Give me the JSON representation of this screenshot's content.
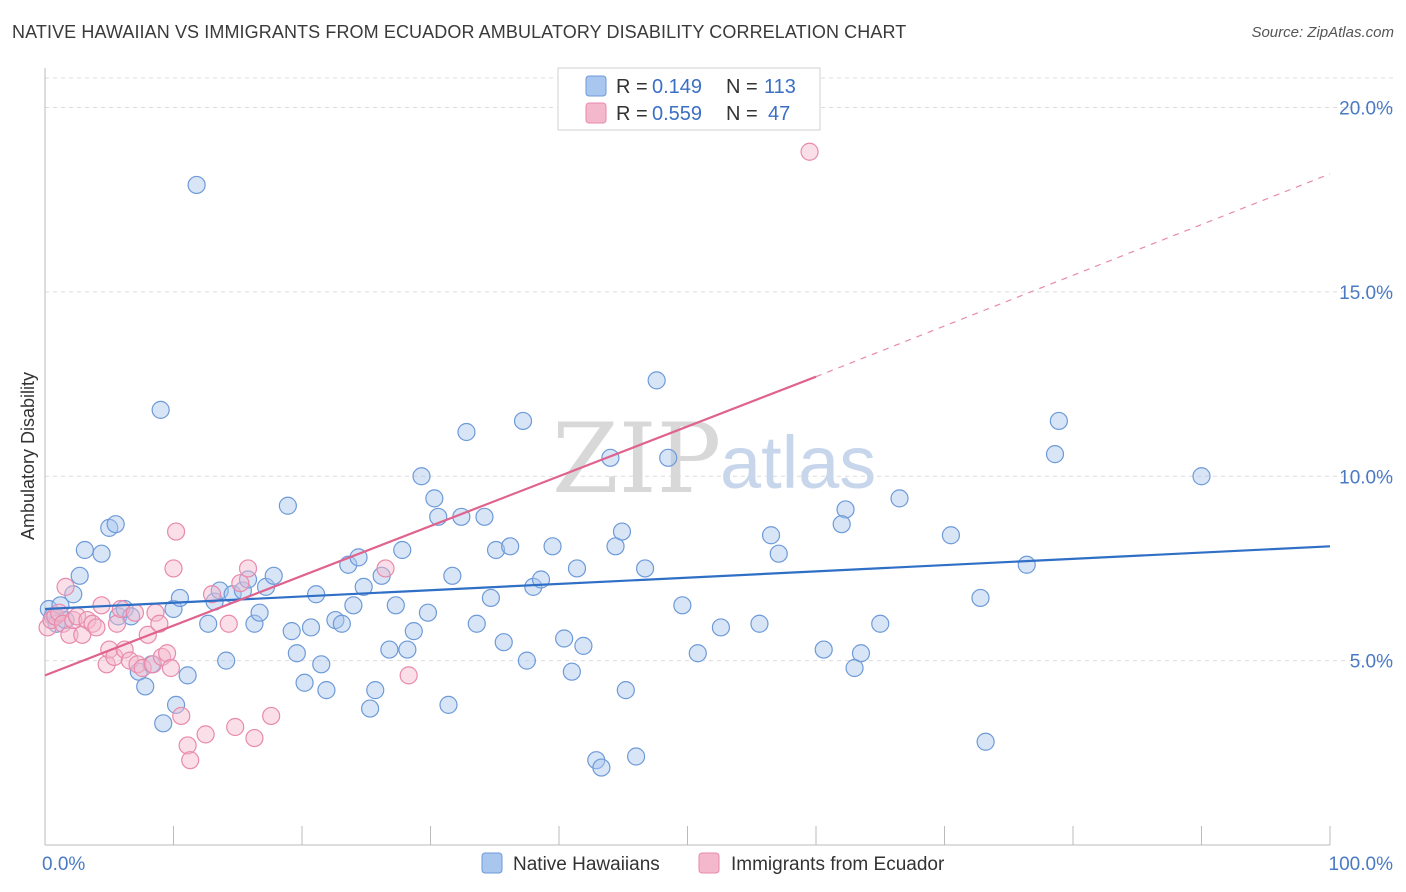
{
  "header": {
    "title": "NATIVE HAWAIIAN VS IMMIGRANTS FROM ECUADOR AMBULATORY DISABILITY CORRELATION CHART",
    "source": "Source: ZipAtlas.com"
  },
  "watermark": {
    "zip": "ZIP",
    "atlas": "atlas"
  },
  "colors": {
    "blue_fill": "#a9c6ee",
    "blue_stroke": "#6d9ad8",
    "blue_line": "#2f6fc6",
    "pink_fill": "#f4b8cc",
    "pink_stroke": "#e88aab",
    "pink_line": "#e0628e",
    "grid": "#dcdcdc",
    "axis_label": "#4a7ac4"
  },
  "legend": {
    "items": [
      {
        "r_label": "R =",
        "r_value": "0.149",
        "n_label": "N =",
        "n_value": "113"
      },
      {
        "r_label": "R =",
        "r_value": "0.559",
        "n_label": "N =",
        "n_value": "47"
      }
    ]
  },
  "chart_data": {
    "type": "scatter",
    "title": "NATIVE HAWAIIAN VS IMMIGRANTS FROM ECUADOR AMBULATORY DISABILITY CORRELATION CHART",
    "xlabel": "",
    "ylabel": "Ambulatory Disability",
    "xlim": [
      0,
      100
    ],
    "ylim": [
      0,
      20.8
    ],
    "x_tick_labels": [
      "0.0%",
      "100.0%"
    ],
    "y_ticks": [
      5,
      10,
      15,
      20
    ],
    "y_tick_labels": [
      "5.0%",
      "10.0%",
      "15.0%",
      "20.0%"
    ],
    "grid": "horizontal dashed",
    "legend_placement": "top-center",
    "series": [
      {
        "name": "Native Hawaiians",
        "color": "#a9c6ee",
        "trend": {
          "x": [
            0,
            100
          ],
          "y": [
            6.4,
            8.1
          ],
          "style": "solid"
        },
        "points": [
          [
            0.3,
            6.4
          ],
          [
            0.6,
            6.2
          ],
          [
            0.9,
            6.0
          ],
          [
            1.2,
            6.5
          ],
          [
            1.6,
            6.1
          ],
          [
            2.2,
            6.8
          ],
          [
            2.7,
            7.3
          ],
          [
            3.1,
            8.0
          ],
          [
            4.4,
            7.9
          ],
          [
            5.0,
            8.6
          ],
          [
            5.5,
            8.7
          ],
          [
            5.7,
            6.2
          ],
          [
            6.2,
            6.4
          ],
          [
            6.7,
            6.2
          ],
          [
            7.3,
            4.7
          ],
          [
            7.8,
            4.3
          ],
          [
            8.3,
            4.9
          ],
          [
            9.0,
            11.8
          ],
          [
            9.2,
            3.3
          ],
          [
            10.0,
            6.4
          ],
          [
            10.2,
            3.8
          ],
          [
            10.5,
            6.7
          ],
          [
            11.1,
            4.6
          ],
          [
            11.8,
            17.9
          ],
          [
            12.7,
            6.0
          ],
          [
            13.2,
            6.6
          ],
          [
            13.6,
            6.9
          ],
          [
            14.1,
            5.0
          ],
          [
            14.6,
            6.8
          ],
          [
            15.4,
            6.9
          ],
          [
            15.8,
            7.2
          ],
          [
            16.3,
            6.0
          ],
          [
            16.7,
            6.3
          ],
          [
            17.2,
            7.0
          ],
          [
            17.8,
            7.3
          ],
          [
            18.9,
            9.2
          ],
          [
            19.2,
            5.8
          ],
          [
            19.6,
            5.2
          ],
          [
            20.2,
            4.4
          ],
          [
            20.7,
            5.9
          ],
          [
            21.1,
            6.8
          ],
          [
            21.5,
            4.9
          ],
          [
            21.9,
            4.2
          ],
          [
            22.6,
            6.1
          ],
          [
            23.1,
            6.0
          ],
          [
            23.6,
            7.6
          ],
          [
            24.0,
            6.5
          ],
          [
            24.4,
            7.8
          ],
          [
            24.8,
            7.0
          ],
          [
            25.3,
            3.7
          ],
          [
            25.7,
            4.2
          ],
          [
            26.2,
            7.3
          ],
          [
            26.8,
            5.3
          ],
          [
            27.3,
            6.5
          ],
          [
            27.8,
            8.0
          ],
          [
            28.2,
            5.3
          ],
          [
            28.7,
            5.8
          ],
          [
            29.3,
            10.0
          ],
          [
            29.8,
            6.3
          ],
          [
            30.3,
            9.4
          ],
          [
            30.6,
            8.9
          ],
          [
            31.4,
            3.8
          ],
          [
            31.7,
            7.3
          ],
          [
            32.4,
            8.9
          ],
          [
            32.8,
            11.2
          ],
          [
            33.6,
            6.0
          ],
          [
            34.2,
            8.9
          ],
          [
            34.7,
            6.7
          ],
          [
            35.1,
            8.0
          ],
          [
            35.7,
            5.5
          ],
          [
            36.2,
            8.1
          ],
          [
            37.2,
            11.5
          ],
          [
            37.5,
            5.0
          ],
          [
            38.0,
            7.0
          ],
          [
            38.6,
            7.2
          ],
          [
            39.5,
            8.1
          ],
          [
            40.4,
            5.6
          ],
          [
            41.0,
            4.7
          ],
          [
            41.4,
            7.5
          ],
          [
            41.9,
            5.4
          ],
          [
            42.9,
            2.3
          ],
          [
            43.3,
            2.1
          ],
          [
            44.0,
            10.5
          ],
          [
            44.4,
            8.1
          ],
          [
            44.9,
            8.5
          ],
          [
            45.2,
            4.2
          ],
          [
            46.0,
            2.4
          ],
          [
            46.7,
            7.5
          ],
          [
            47.6,
            12.6
          ],
          [
            48.5,
            10.5
          ],
          [
            49.6,
            6.5
          ],
          [
            50.8,
            5.2
          ],
          [
            52.6,
            5.9
          ],
          [
            55.6,
            6.0
          ],
          [
            56.5,
            8.4
          ],
          [
            57.1,
            7.9
          ],
          [
            60.6,
            5.3
          ],
          [
            62.3,
            9.1
          ],
          [
            62.0,
            8.7
          ],
          [
            63.0,
            4.8
          ],
          [
            63.5,
            5.2
          ],
          [
            65.0,
            6.0
          ],
          [
            66.5,
            9.4
          ],
          [
            70.5,
            8.4
          ],
          [
            72.8,
            6.7
          ],
          [
            73.2,
            2.8
          ],
          [
            76.4,
            7.6
          ],
          [
            78.6,
            10.6
          ],
          [
            78.9,
            11.5
          ],
          [
            90.0,
            10.0
          ]
        ]
      },
      {
        "name": "Immigrants from Ecuador",
        "color": "#f4b8cc",
        "trend": {
          "x": [
            0,
            60
          ],
          "y": [
            4.6,
            12.7
          ],
          "dashed_to": [
            100,
            18.2
          ],
          "style": "solid then dashed"
        },
        "points": [
          [
            0.2,
            5.9
          ],
          [
            0.5,
            6.1
          ],
          [
            0.8,
            6.2
          ],
          [
            1.1,
            6.3
          ],
          [
            1.4,
            6.0
          ],
          [
            1.6,
            7.0
          ],
          [
            1.9,
            5.7
          ],
          [
            2.2,
            6.1
          ],
          [
            2.5,
            6.2
          ],
          [
            2.9,
            5.7
          ],
          [
            3.3,
            6.1
          ],
          [
            3.7,
            6.0
          ],
          [
            4.0,
            5.9
          ],
          [
            4.4,
            6.5
          ],
          [
            4.8,
            4.9
          ],
          [
            5.0,
            5.3
          ],
          [
            5.4,
            5.1
          ],
          [
            5.6,
            6.0
          ],
          [
            5.9,
            6.4
          ],
          [
            6.2,
            5.3
          ],
          [
            6.6,
            5.0
          ],
          [
            7.0,
            6.3
          ],
          [
            7.2,
            4.9
          ],
          [
            7.6,
            4.8
          ],
          [
            8.0,
            5.7
          ],
          [
            8.4,
            4.9
          ],
          [
            8.6,
            6.3
          ],
          [
            8.9,
            6.0
          ],
          [
            9.1,
            5.1
          ],
          [
            9.5,
            5.2
          ],
          [
            9.8,
            4.8
          ],
          [
            10.0,
            7.5
          ],
          [
            10.2,
            8.5
          ],
          [
            10.6,
            3.5
          ],
          [
            11.1,
            2.7
          ],
          [
            11.3,
            2.3
          ],
          [
            12.5,
            3.0
          ],
          [
            13.0,
            6.8
          ],
          [
            14.3,
            6.0
          ],
          [
            14.8,
            3.2
          ],
          [
            15.2,
            7.1
          ],
          [
            15.8,
            7.5
          ],
          [
            16.3,
            2.9
          ],
          [
            17.6,
            3.5
          ],
          [
            26.5,
            7.5
          ],
          [
            28.3,
            4.6
          ],
          [
            59.5,
            18.8
          ]
        ]
      }
    ]
  },
  "bottom_legend": [
    {
      "label": "Native Hawaiians"
    },
    {
      "label": "Immigrants from Ecuador"
    }
  ]
}
